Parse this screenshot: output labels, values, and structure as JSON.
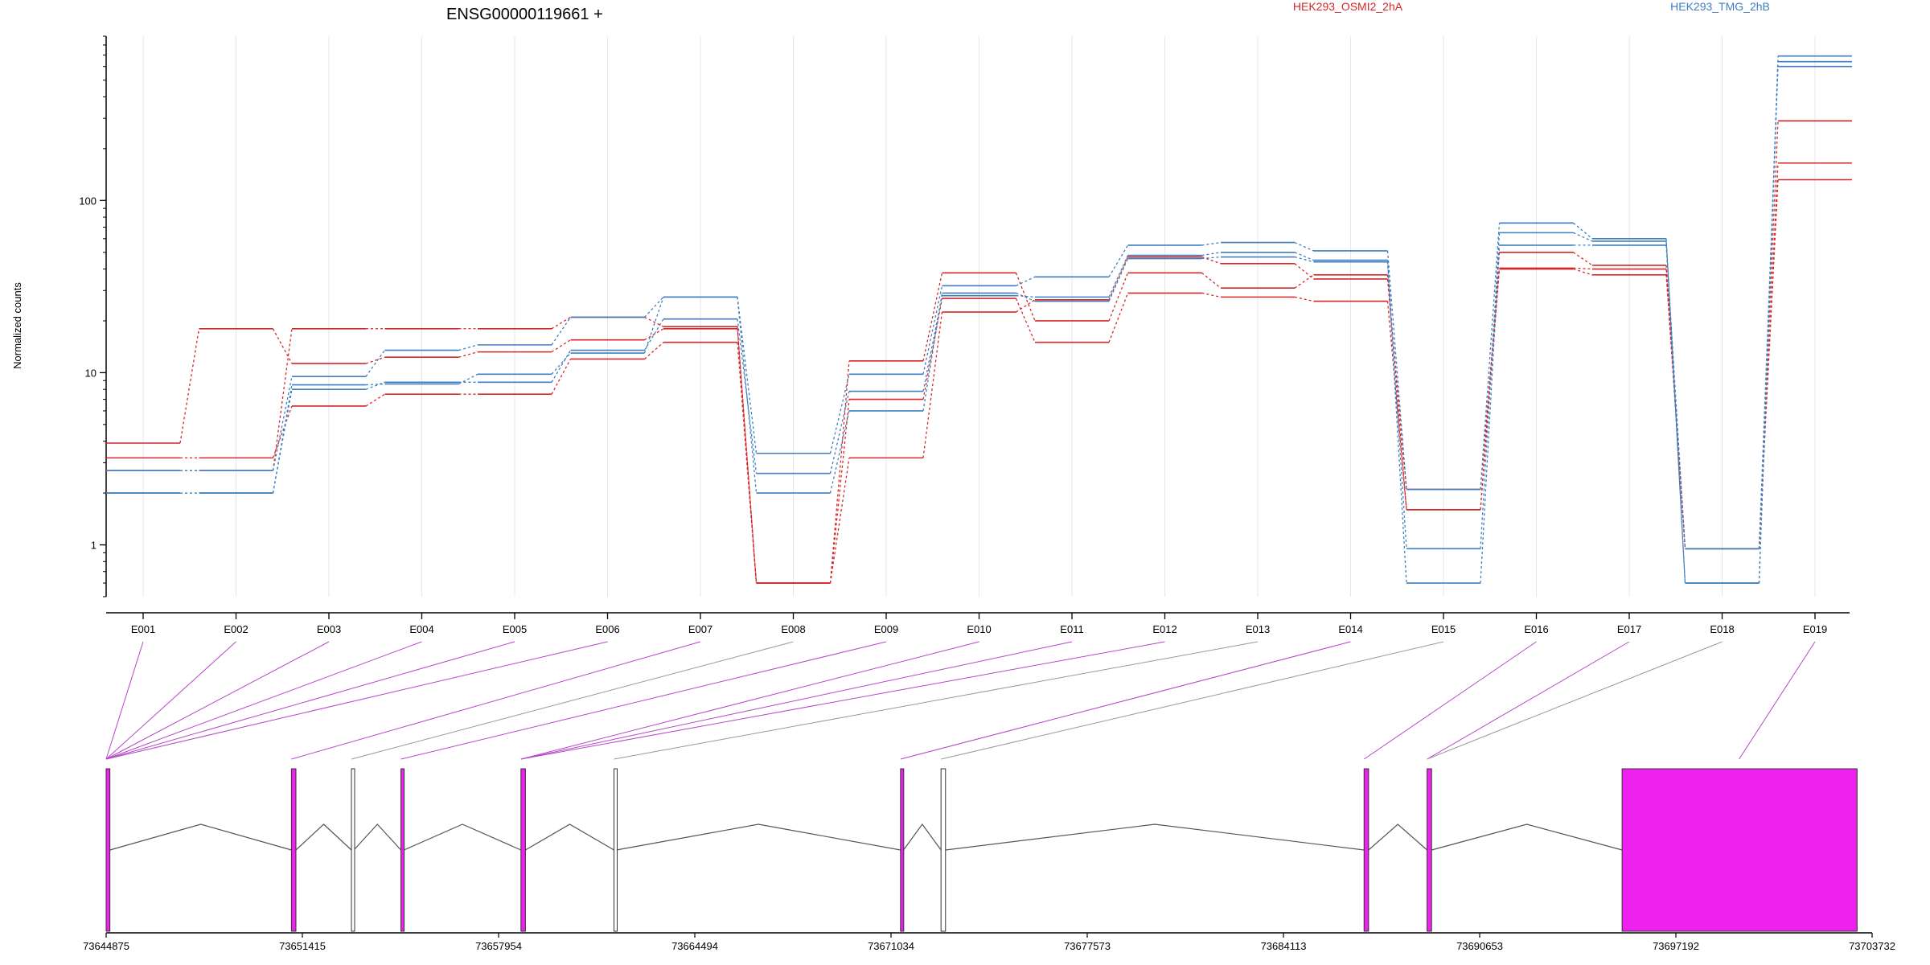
{
  "chart_data": [
    {
      "type": "line",
      "title": "ENSG00000119661 +",
      "ylabel": "Normalized counts",
      "yscale": "log",
      "ylim": [
        0.5,
        900
      ],
      "yticks": [
        1,
        10,
        100
      ],
      "ytick_labels": [
        "1",
        "10",
        "100"
      ],
      "grid": "vertical",
      "legend_placement": "top-right",
      "categories": [
        "E001",
        "E002",
        "E003",
        "E004",
        "E005",
        "E006",
        "E007",
        "E008",
        "E009",
        "E010",
        "E011",
        "E012",
        "E013",
        "E014",
        "E015",
        "E016",
        "E017",
        "E018",
        "E019"
      ],
      "colors": {
        "HEK293_OSMI2_2hA": "#d62728",
        "HEK293_TMG_2hB": "#3f7fbf"
      },
      "series": [
        {
          "name": "HEK293_OSMI2_2hA",
          "values": [
            3.9,
            18,
            11.3,
            12.3,
            13.2,
            15.5,
            18,
            0.6,
            11.7,
            38,
            20,
            38,
            31,
            37,
            1.6,
            50,
            42,
            0.95,
            290
          ]
        },
        {
          "name": "HEK293_OSMI2_2hA",
          "values": [
            3.2,
            3.2,
            6.4,
            7.5,
            7.5,
            12,
            15,
            0.6,
            7,
            27,
            15,
            29,
            27.5,
            26,
            1.6,
            40,
            37,
            0.95,
            165
          ]
        },
        {
          "name": "HEK293_OSMI2_2hA",
          "values": [
            2.7,
            2.7,
            18,
            18,
            18,
            21,
            18.5,
            0.6,
            3.2,
            22.5,
            26.5,
            47,
            43,
            35,
            2.1,
            40.5,
            40,
            0.95,
            132
          ]
        },
        {
          "name": "HEK293_TMG_2hB",
          "values": [
            2.7,
            2.7,
            9.5,
            13.5,
            14.5,
            21,
            27.5,
            3.4,
            9.8,
            32,
            36,
            55,
            57,
            51,
            2.1,
            74,
            60,
            0.6,
            690
          ]
        },
        {
          "name": "HEK293_TMG_2hB",
          "values": [
            2.0,
            2.0,
            8.0,
            8.8,
            8.8,
            13.5,
            20.5,
            2.6,
            7.8,
            28,
            27.5,
            48,
            50,
            45,
            0.95,
            65,
            58,
            0.6,
            640
          ]
        },
        {
          "name": "HEK293_TMG_2hB",
          "values": [
            2.0,
            2.0,
            8.5,
            8.6,
            9.8,
            13,
            27.5,
            2.0,
            6,
            29,
            26,
            46,
            47,
            44,
            0.6,
            55,
            55,
            0.95,
            600
          ]
        }
      ]
    },
    {
      "type": "gene-model",
      "coordinate_ticks": [
        "73644875",
        "73651415",
        "73657954",
        "73664494",
        "73671034",
        "73677573",
        "73684113",
        "73690653",
        "73697192",
        "73703732"
      ],
      "xlim": [
        73644875,
        73703732
      ],
      "exon_color": "#ee22ee",
      "exons": [
        {
          "start": 73644875,
          "end": 73645000,
          "type": "tested"
        },
        {
          "start": 73651050,
          "end": 73651200,
          "type": "tested"
        },
        {
          "start": 73653050,
          "end": 73653130,
          "type": "untested"
        },
        {
          "start": 73654700,
          "end": 73654800,
          "type": "tested"
        },
        {
          "start": 73658700,
          "end": 73658850,
          "type": "tested"
        },
        {
          "start": 73661800,
          "end": 73661880,
          "type": "untested"
        },
        {
          "start": 73671350,
          "end": 73671450,
          "type": "tested"
        },
        {
          "start": 73672700,
          "end": 73672850,
          "type": "untested"
        },
        {
          "start": 73686800,
          "end": 73686950,
          "type": "tested"
        },
        {
          "start": 73688900,
          "end": 73689050,
          "type": "tested"
        },
        {
          "start": 73695400,
          "end": 73703232,
          "type": "tested"
        }
      ],
      "connectors": [
        {
          "bin": "E001",
          "to": 73644875,
          "type": "tested"
        },
        {
          "bin": "E002",
          "to": 73644875,
          "type": "tested"
        },
        {
          "bin": "E003",
          "to": 73644875,
          "type": "tested"
        },
        {
          "bin": "E004",
          "to": 73644875,
          "type": "tested"
        },
        {
          "bin": "E005",
          "to": 73644875,
          "type": "tested"
        },
        {
          "bin": "E006",
          "to": 73644875,
          "type": "tested"
        },
        {
          "bin": "E007",
          "to": 73651050,
          "type": "tested"
        },
        {
          "bin": "E008",
          "to": 73653050,
          "type": "untested"
        },
        {
          "bin": "E009",
          "to": 73654700,
          "type": "tested"
        },
        {
          "bin": "E010",
          "to": 73658700,
          "type": "tested"
        },
        {
          "bin": "E011",
          "to": 73658700,
          "type": "tested"
        },
        {
          "bin": "E012",
          "to": 73658700,
          "type": "tested"
        },
        {
          "bin": "E013",
          "to": 73661800,
          "type": "untested"
        },
        {
          "bin": "E014",
          "to": 73671350,
          "type": "tested"
        },
        {
          "bin": "E015",
          "to": 73672700,
          "type": "untested"
        },
        {
          "bin": "E016",
          "to": 73686800,
          "type": "tested"
        },
        {
          "bin": "E017",
          "to": 73688900,
          "type": "tested"
        },
        {
          "bin": "E018",
          "to": 73688900,
          "type": "untested"
        },
        {
          "bin": "E019",
          "to": 73699300,
          "type": "tested"
        }
      ]
    }
  ]
}
